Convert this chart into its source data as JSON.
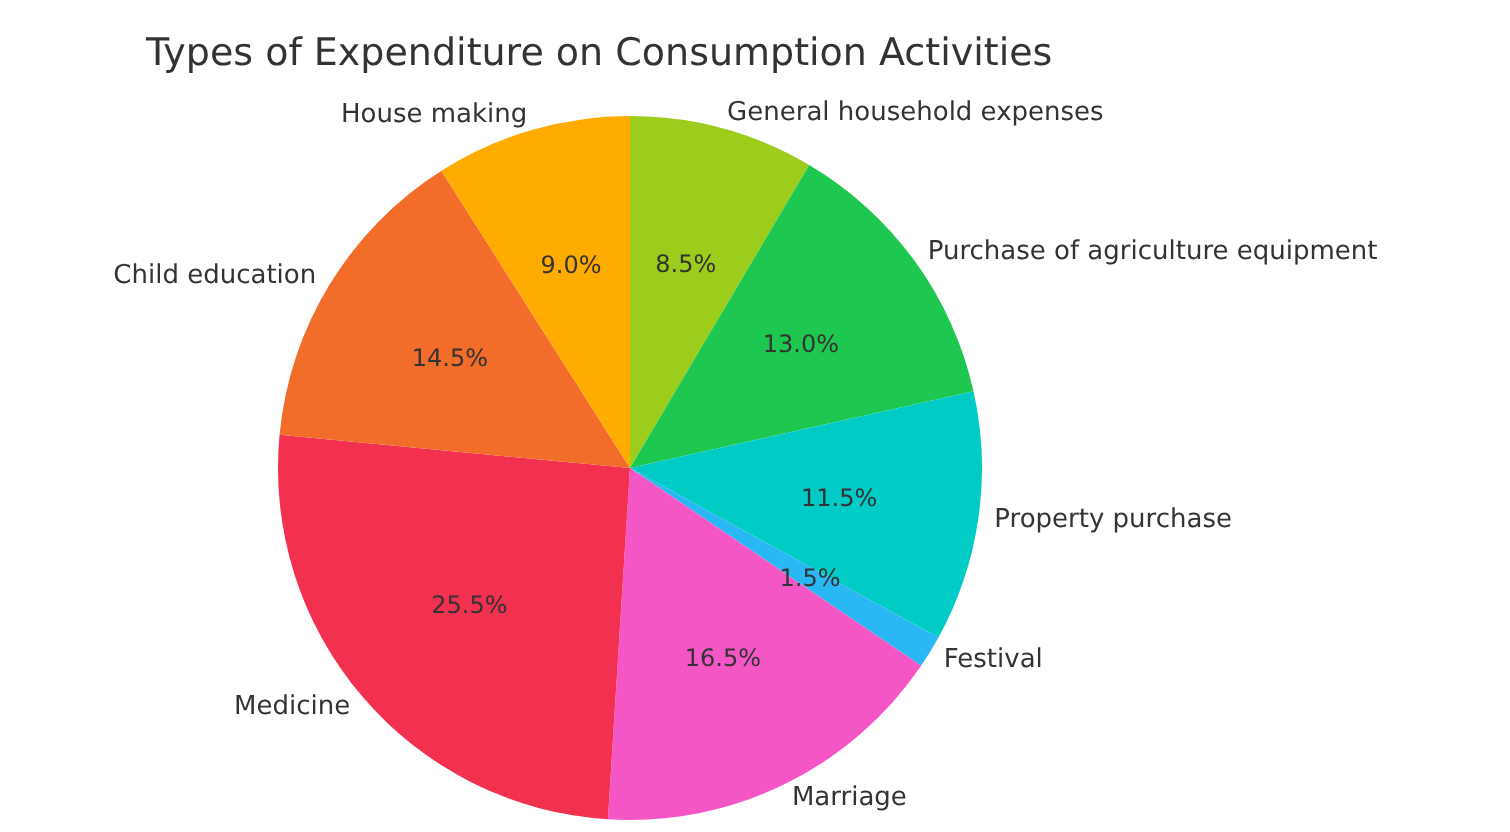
{
  "chart_data": {
    "type": "pie",
    "title": "Types of Expenditure on Consumption Activities",
    "categories": [
      "General household expenses",
      "Purchase of agriculture equipment",
      "Property purchase",
      "Festival",
      "Marriage",
      "Medicine",
      "Child education",
      "House making"
    ],
    "values": [
      8.5,
      13.0,
      11.5,
      1.5,
      16.5,
      25.5,
      14.5,
      9.0
    ],
    "value_labels": [
      "8.5%",
      "13.0%",
      "11.5%",
      "1.5%",
      "16.5%",
      "25.5%",
      "14.5%",
      "9.0%"
    ],
    "colors": [
      "#9ccc1c",
      "#1ec850",
      "#00cbc4",
      "#2ab8f5",
      "#f556c6",
      "#f2304f",
      "#f26c2a",
      "#ffab00"
    ],
    "legend": false
  }
}
